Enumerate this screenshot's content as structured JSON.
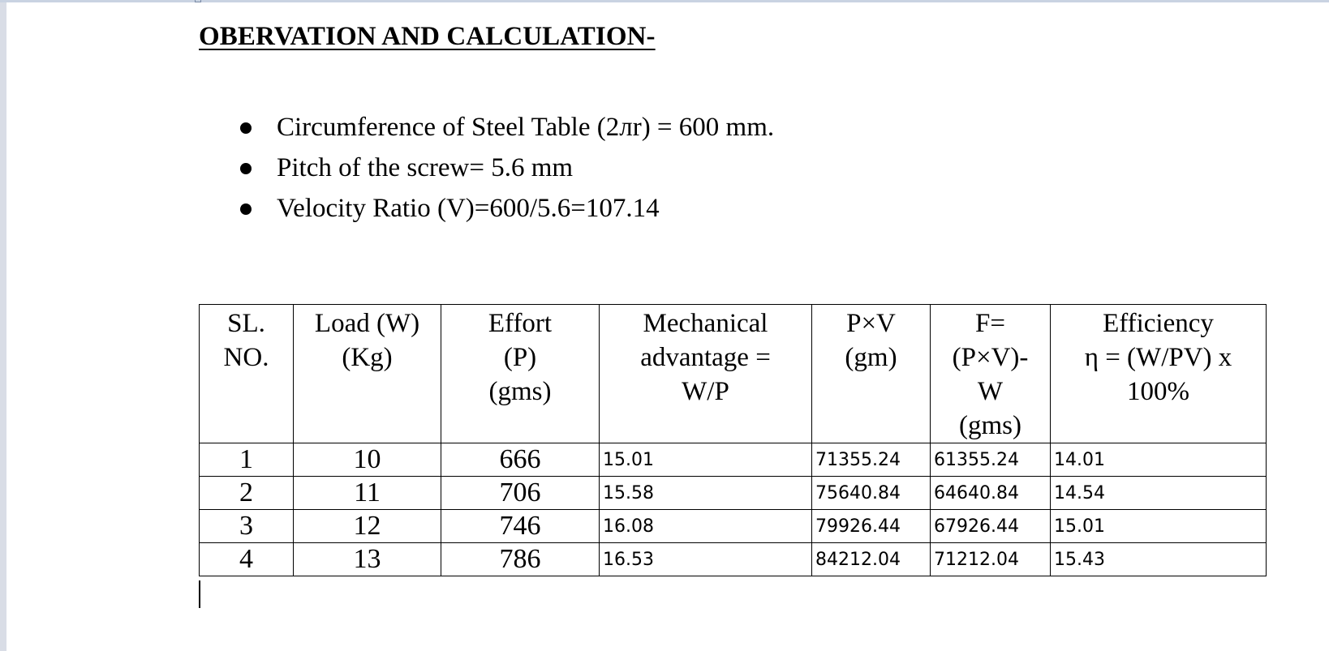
{
  "document": {
    "heading": "OBERVATION AND CALCULATION-",
    "bullets": [
      "Circumference of Steel Table (2лr) = 600 mm.",
      "Pitch of the screw= 5.6 mm",
      "Velocity Ratio (V)=600/5.6=107.14"
    ]
  },
  "table": {
    "headers": [
      [
        "SL.",
        "NO."
      ],
      [
        "Load (W)",
        "(Kg)"
      ],
      [
        "Effort",
        "(P)",
        "(gms)"
      ],
      [
        "Mechanical",
        "advantage =",
        "W/P"
      ],
      [
        "P×V",
        "(gm)"
      ],
      [
        "F=",
        "(P×V)-",
        "W",
        "(gms)"
      ],
      [
        "Efficiency",
        "η = (W/PV) x",
        "100%"
      ]
    ],
    "rows": [
      [
        "1",
        "10",
        "666",
        "15.01",
        "71355.24",
        "61355.24",
        "14.01"
      ],
      [
        "2",
        "11",
        "706",
        "15.58",
        "75640.84",
        "64640.84",
        "14.54"
      ],
      [
        "3",
        "12",
        "746",
        "16.08",
        "79926.44",
        "67926.44",
        "15.01"
      ],
      [
        "4",
        "13",
        "786",
        "16.53",
        "84212.04",
        "71212.04",
        "15.43"
      ]
    ]
  }
}
